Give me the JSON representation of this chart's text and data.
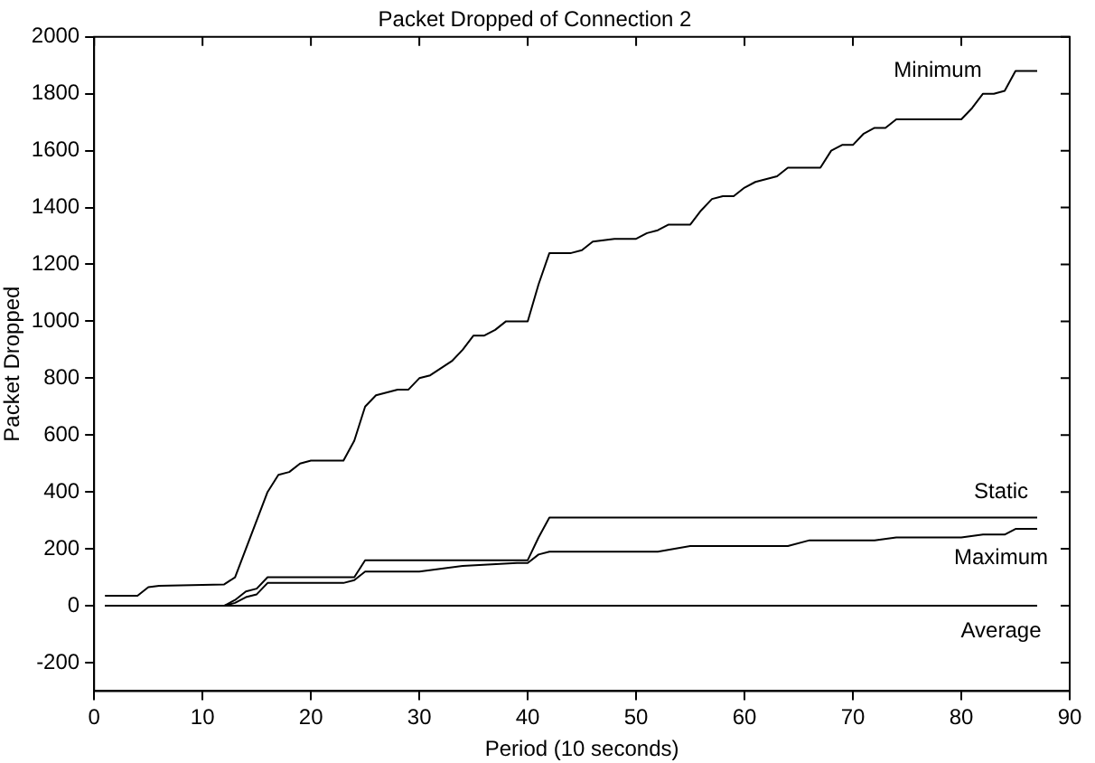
{
  "chart_data": {
    "type": "line",
    "title": "Packet Dropped of Connection 2",
    "xlabel": "Period (10 seconds)",
    "ylabel": "Packet Dropped",
    "xlim": [
      0,
      90
    ],
    "xticks": [
      0,
      10,
      20,
      30,
      40,
      50,
      60,
      70,
      80,
      90
    ],
    "ylim": [
      -300,
      2000
    ],
    "yticks": [
      -200,
      0,
      200,
      400,
      600,
      800,
      1000,
      1200,
      1400,
      1600,
      1800,
      2000
    ],
    "grid": false,
    "legend": "right",
    "marker": "none",
    "line_style": "solid",
    "series": [
      {
        "name": "Minimum",
        "color": "#000000",
        "x": [
          1,
          4,
          5,
          6,
          12,
          13,
          14,
          15,
          16,
          17,
          18,
          19,
          20,
          23,
          24,
          25,
          26,
          28,
          29,
          30,
          31,
          33,
          34,
          35,
          36,
          37,
          38,
          40,
          41,
          42,
          44,
          45,
          46,
          48,
          50,
          51,
          52,
          53,
          55,
          56,
          57,
          58,
          59,
          60,
          61,
          63,
          64,
          67,
          68,
          69,
          70,
          71,
          72,
          73,
          74,
          80,
          81,
          82,
          83,
          84,
          85,
          87
        ],
        "values": [
          35,
          35,
          65,
          70,
          75,
          100,
          200,
          300,
          400,
          460,
          470,
          500,
          510,
          510,
          580,
          700,
          740,
          760,
          760,
          800,
          810,
          860,
          900,
          950,
          950,
          970,
          1000,
          1000,
          1130,
          1240,
          1240,
          1250,
          1280,
          1290,
          1290,
          1310,
          1320,
          1340,
          1340,
          1390,
          1430,
          1440,
          1440,
          1470,
          1490,
          1510,
          1540,
          1540,
          1600,
          1620,
          1620,
          1660,
          1680,
          1680,
          1710,
          1710,
          1750,
          1800,
          1800,
          1810,
          1880,
          1880
        ]
      },
      {
        "name": "Static",
        "color": "#000000",
        "x": [
          1,
          12,
          13,
          14,
          15,
          16,
          24,
          25,
          40,
          41,
          42,
          87
        ],
        "values": [
          0,
          0,
          20,
          50,
          60,
          100,
          100,
          160,
          160,
          240,
          310,
          310
        ]
      },
      {
        "name": "Maximum",
        "color": "#000000",
        "x": [
          1,
          12,
          13,
          14,
          15,
          16,
          23,
          24,
          25,
          30,
          34,
          39,
          40,
          41,
          42,
          52,
          55,
          64,
          66,
          72,
          74,
          80,
          82,
          84,
          85,
          87
        ],
        "values": [
          0,
          0,
          10,
          30,
          40,
          80,
          80,
          90,
          120,
          120,
          140,
          150,
          150,
          180,
          190,
          190,
          210,
          210,
          230,
          230,
          240,
          240,
          250,
          250,
          270,
          270
        ]
      },
      {
        "name": "Average",
        "color": "#000000",
        "x": [
          1,
          87
        ],
        "values": [
          0,
          0
        ]
      }
    ]
  }
}
